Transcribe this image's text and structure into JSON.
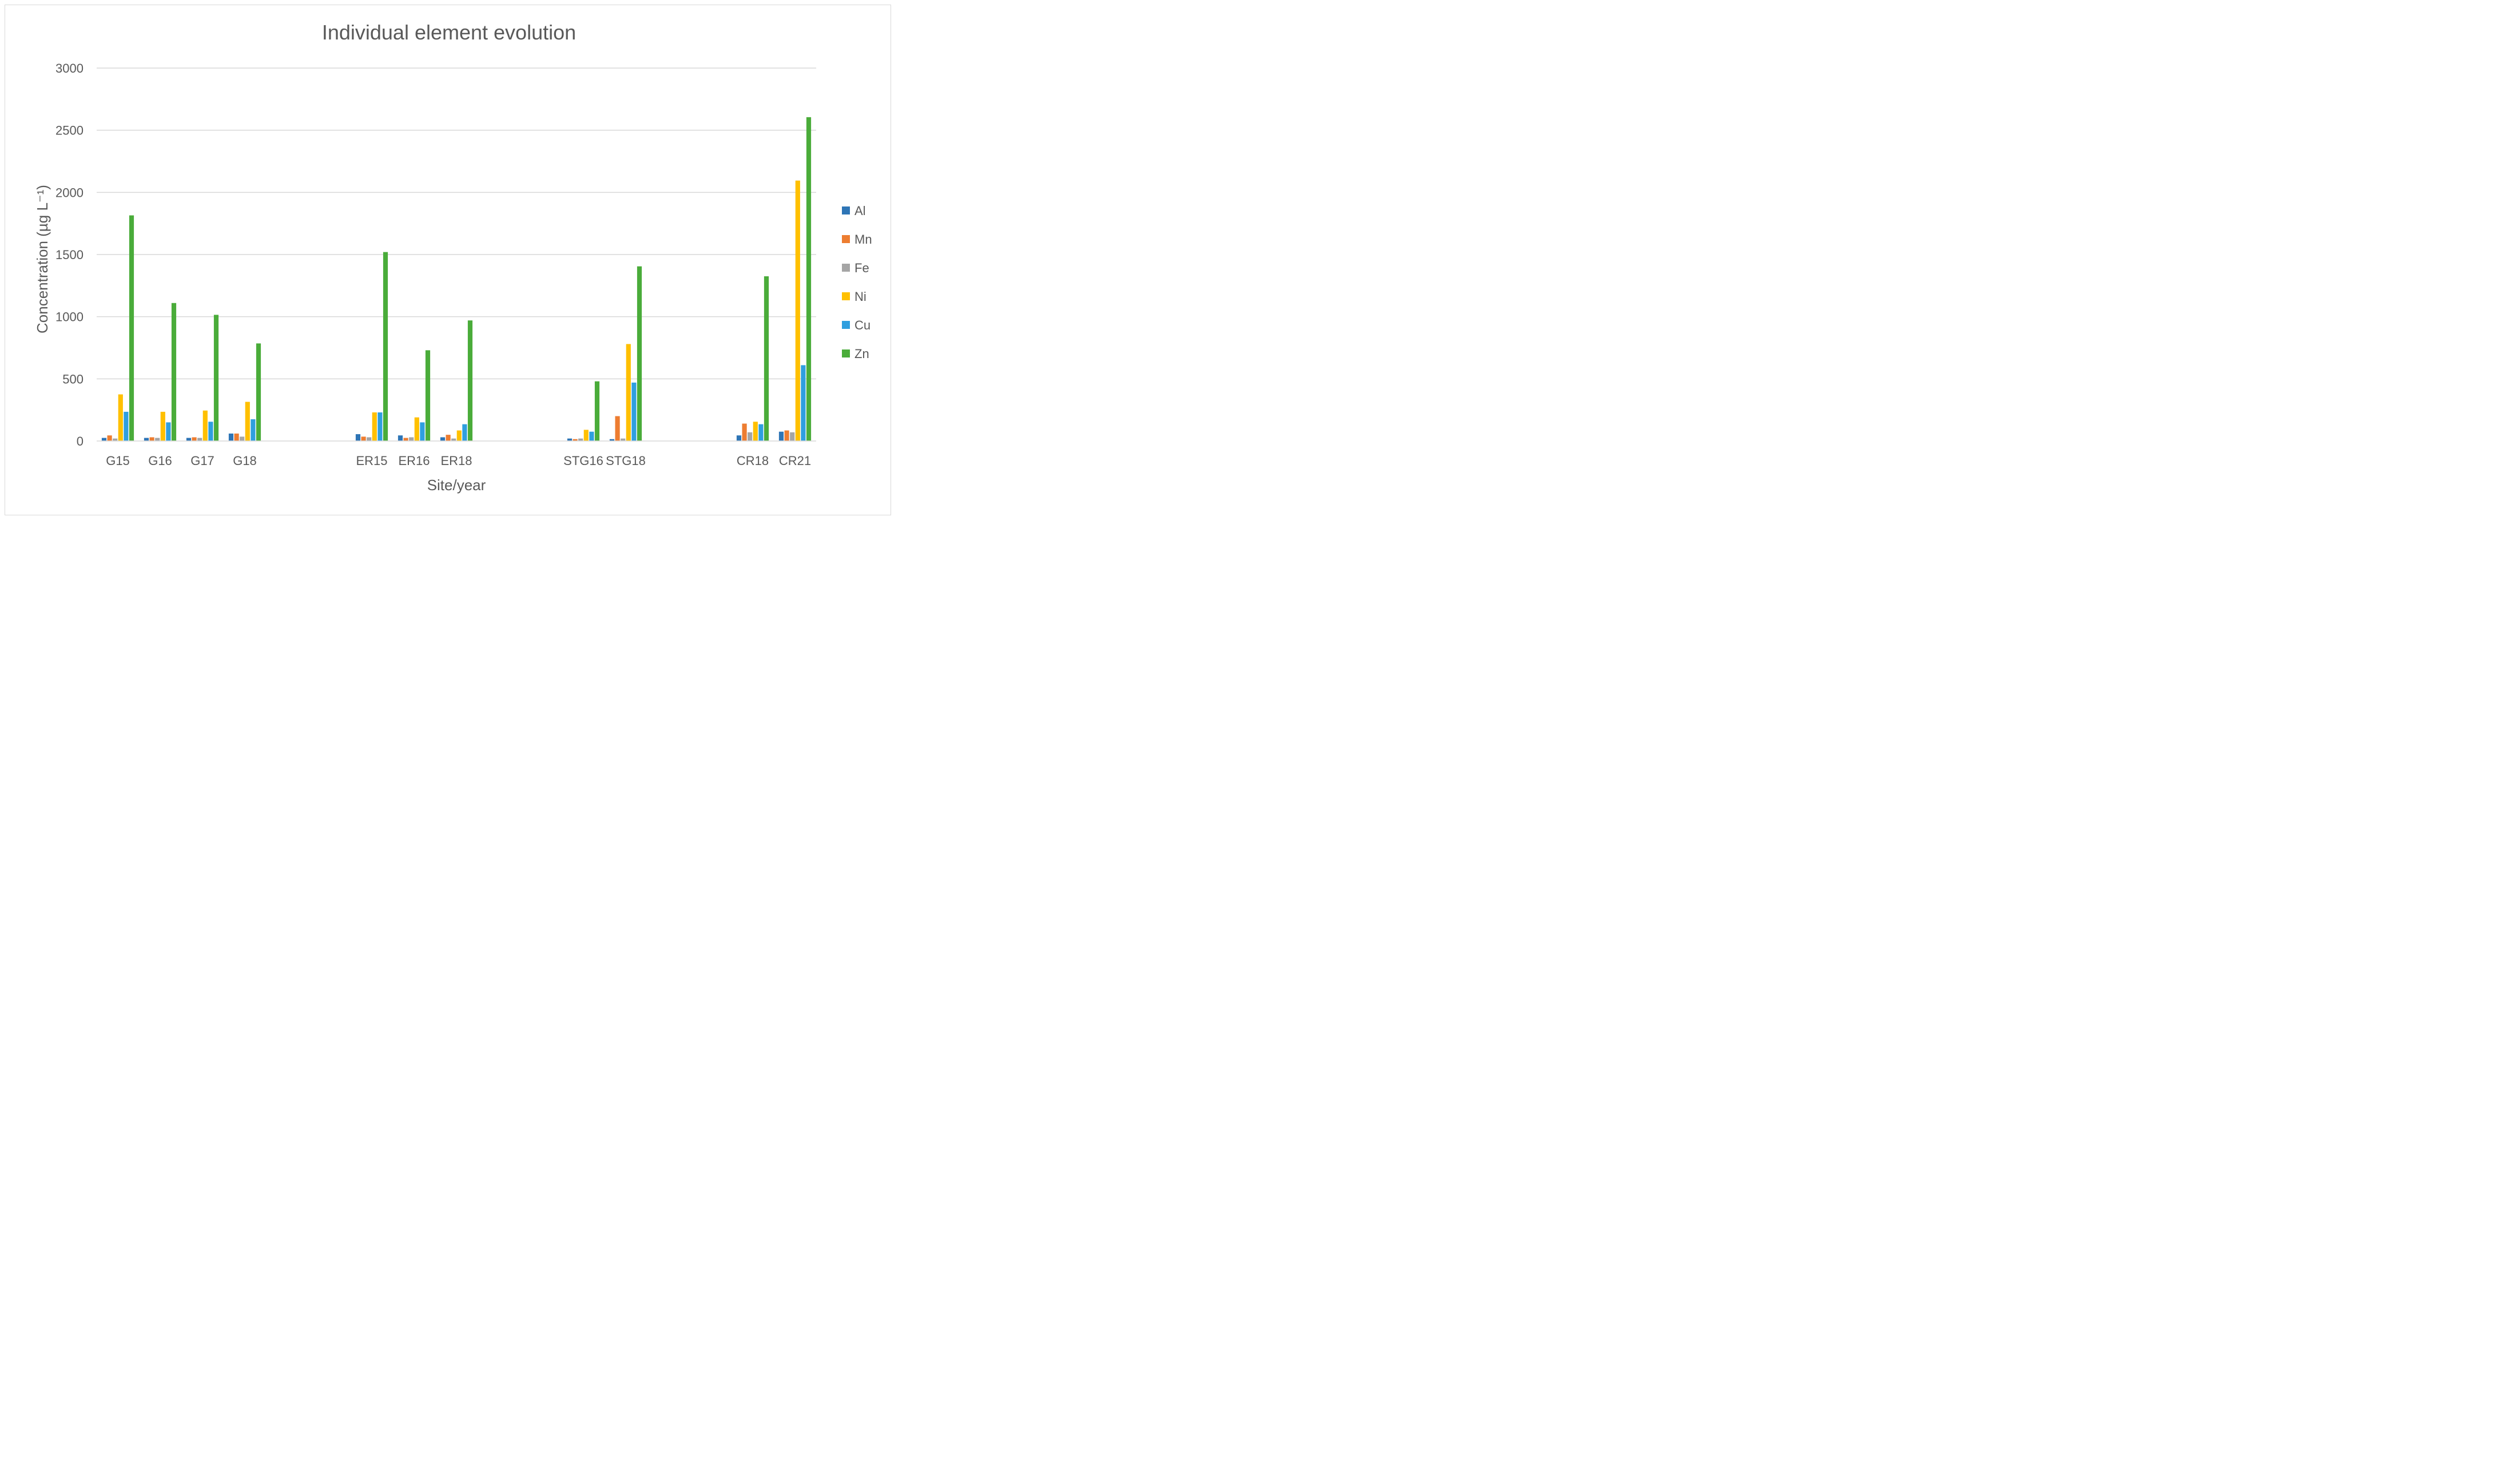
{
  "chart_data": {
    "type": "bar",
    "title": "Individual element evolution",
    "xlabel": "Site/year",
    "ylabel": "Concentration (µg L⁻¹)",
    "ylim": [
      0,
      3000
    ],
    "yticks": [
      0,
      500,
      1000,
      1500,
      2000,
      2500,
      3000
    ],
    "grid": true,
    "legend": "right",
    "categories": [
      "G15",
      "G16",
      "G17",
      "G18",
      "",
      "",
      "ER15",
      "ER16",
      "ER18",
      "",
      "",
      "STG16",
      "STG18",
      "",
      "",
      "CR18",
      "CR21"
    ],
    "series": [
      {
        "name": "Al",
        "color": "#2e75b6",
        "values": [
          25,
          25,
          25,
          60,
          null,
          null,
          55,
          45,
          30,
          null,
          null,
          20,
          15,
          null,
          null,
          45,
          75
        ]
      },
      {
        "name": "Mn",
        "color": "#ed7d31",
        "values": [
          45,
          30,
          30,
          60,
          null,
          null,
          35,
          25,
          50,
          null,
          null,
          15,
          200,
          null,
          null,
          140,
          85
        ]
      },
      {
        "name": "Fe",
        "color": "#a5a5a5",
        "values": [
          20,
          25,
          25,
          35,
          null,
          null,
          30,
          30,
          20,
          null,
          null,
          20,
          20,
          null,
          null,
          70,
          70
        ]
      },
      {
        "name": "Ni",
        "color": "#ffc000",
        "values": [
          375,
          235,
          245,
          315,
          null,
          null,
          230,
          190,
          85,
          null,
          null,
          90,
          780,
          null,
          null,
          155,
          2095
        ]
      },
      {
        "name": "Cu",
        "color": "#2f9fdf",
        "values": [
          235,
          150,
          155,
          175,
          null,
          null,
          230,
          150,
          135,
          null,
          null,
          75,
          470,
          null,
          null,
          135,
          610
        ]
      },
      {
        "name": "Zn",
        "color": "#4aac3a",
        "values": [
          1815,
          1110,
          1015,
          785,
          null,
          null,
          1520,
          730,
          970,
          null,
          null,
          480,
          1405,
          null,
          null,
          1325,
          2605
        ]
      }
    ]
  }
}
